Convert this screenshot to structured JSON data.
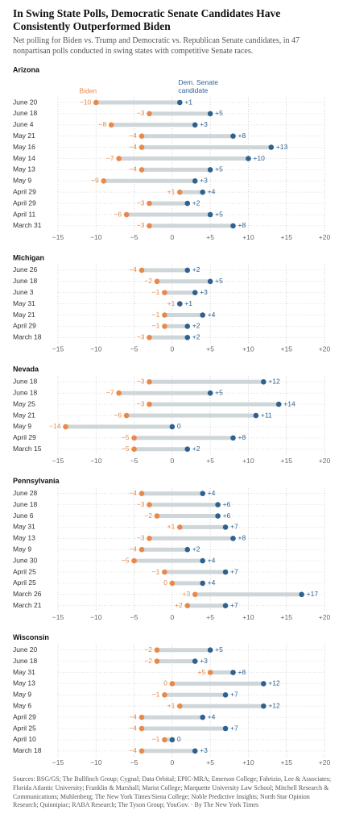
{
  "title": "In Swing State Polls, Democratic Senate Candidates Have Consistently Outperformed Biden",
  "subtitle": "Net polling for Biden vs. Trump and Democratic vs. Republican Senate candidates, in 47 nonpartisan polls conducted in swing states with competitive Senate races.",
  "source": "Sources: BSG/GS; The Bullfinch Group; Cygnal; Data Orbital; EPIC-MRA; Emerson College; Fabrizio, Lee & Associates; Florida Atlantic University; Franklin & Marshall; Marist College; Marquette University Law School; Mitchell Research & Communications; Muhlenberg; The New York Times/Siena College; Noble Predictive Insights; North Star Opinion Research; Quinnipiac; RABA Research; The Tyson Group; YouGov. · By The New York Times",
  "chart_data": [
    {
      "type": "dumbbell",
      "title": "Arizona",
      "categories": [
        "June 20",
        "June 18",
        "June 4",
        "May 21",
        "May 16",
        "May 14",
        "May 13",
        "May 9",
        "April 29",
        "April 29",
        "April 11",
        "March 31"
      ],
      "series": [
        {
          "name": "Biden",
          "color": "#e8894a",
          "values": [
            -10,
            -3,
            -8,
            -4,
            -4,
            -7,
            -4,
            -9,
            1,
            -3,
            -6,
            -3
          ],
          "value_labels": [
            "−10",
            "−3",
            "−8",
            "−4",
            "−4",
            "−7",
            "−4",
            "−9",
            "+1",
            "−3",
            "−6",
            "−3"
          ]
        },
        {
          "name": "Dem. Senate candidate",
          "color": "#2e6190",
          "values": [
            1,
            5,
            3,
            8,
            13,
            10,
            5,
            3,
            4,
            2,
            5,
            8
          ],
          "value_labels": [
            "+1",
            "+5",
            "+3",
            "+8",
            "+13",
            "+10",
            "+5",
            "+3",
            "+4",
            "+2",
            "+5",
            "+8"
          ]
        }
      ],
      "xlim": [
        -15,
        20
      ],
      "xticks": [
        {
          "value": -15,
          "label": "−15"
        },
        {
          "value": -10,
          "label": "−10"
        },
        {
          "value": -5,
          "label": "−5"
        },
        0,
        {
          "value": 5,
          "label": "+5"
        },
        {
          "value": 10,
          "label": "+10"
        },
        {
          "value": 15,
          "label": "+15"
        },
        {
          "value": 20,
          "label": "+20"
        }
      ],
      "grid": true
    },
    {
      "type": "dumbbell",
      "title": "Michigan",
      "categories": [
        "June 26",
        "June 18",
        "June 3",
        "May 31",
        "May 21",
        "April 29",
        "March 18"
      ],
      "series": [
        {
          "color": "#e8894a",
          "values": [
            -4,
            -2,
            -1,
            1,
            -1,
            -1,
            -3
          ],
          "value_labels": [
            "−4",
            "−2",
            "−1",
            "+1",
            "−1",
            "−1",
            "−3"
          ]
        },
        {
          "color": "#2e6190",
          "values": [
            2,
            5,
            3,
            1,
            4,
            2,
            2
          ],
          "value_labels": [
            "+2",
            "+5",
            "+3",
            "+1",
            "+4",
            "+2",
            "+2"
          ]
        }
      ],
      "xlim": [
        -15,
        20
      ],
      "xticks": [
        {
          "value": -15,
          "label": "−15"
        },
        {
          "value": -10,
          "label": "−10"
        },
        {
          "value": -5,
          "label": "−5"
        },
        0,
        {
          "value": 5,
          "label": "+5"
        },
        {
          "value": 10,
          "label": "+10"
        },
        {
          "value": 15,
          "label": "+15"
        },
        {
          "value": 20,
          "label": "+20"
        }
      ],
      "grid": true
    },
    {
      "type": "dumbbell",
      "title": "Nevada",
      "categories": [
        "June 18",
        "June 18",
        "May 25",
        "May 21",
        "May 9",
        "April 29",
        "March 15"
      ],
      "series": [
        {
          "color": "#e8894a",
          "values": [
            -3,
            -7,
            -3,
            -6,
            -14,
            -5,
            -5
          ],
          "value_labels": [
            "−3",
            "−7",
            "−3",
            "−6",
            "−14",
            "−5",
            "−5"
          ]
        },
        {
          "color": "#2e6190",
          "values": [
            12,
            5,
            14,
            11,
            0,
            8,
            2
          ],
          "value_labels": [
            "+12",
            "+5",
            "+14",
            "+11",
            "0",
            "+8",
            "+2"
          ]
        }
      ],
      "xlim": [
        -15,
        20
      ],
      "xticks": [
        {
          "value": -15,
          "label": "−15"
        },
        {
          "value": -10,
          "label": "−10"
        },
        {
          "value": -5,
          "label": "−5"
        },
        0,
        {
          "value": 5,
          "label": "+5"
        },
        {
          "value": 10,
          "label": "+10"
        },
        {
          "value": 15,
          "label": "+15"
        },
        {
          "value": 20,
          "label": "+20"
        }
      ],
      "grid": true
    },
    {
      "type": "dumbbell",
      "title": "Pennsylvania",
      "categories": [
        "June 28",
        "June 18",
        "June 6",
        "May 31",
        "May 13",
        "May 9",
        "June 30",
        "April 25",
        "April 25",
        "March 26",
        "March 21"
      ],
      "series": [
        {
          "color": "#e8894a",
          "values": [
            -4,
            -3,
            -2,
            1,
            -3,
            -4,
            -5,
            -1,
            0,
            3,
            2
          ],
          "value_labels": [
            "−4",
            "−3",
            "−2",
            "+1",
            "−3",
            "−4",
            "−5",
            "−1",
            "0",
            "+3",
            "+2"
          ]
        },
        {
          "color": "#2e6190",
          "values": [
            4,
            6,
            6,
            7,
            8,
            2,
            4,
            7,
            4,
            17,
            7
          ],
          "value_labels": [
            "+4",
            "+6",
            "+6",
            "+7",
            "+8",
            "+2",
            "+4",
            "+7",
            "+4",
            "+17",
            "+7"
          ]
        }
      ],
      "xlim": [
        -15,
        20
      ],
      "xticks": [
        {
          "value": -15,
          "label": "−15"
        },
        {
          "value": -10,
          "label": "−10"
        },
        {
          "value": -5,
          "label": "−5"
        },
        0,
        {
          "value": 5,
          "label": "+5"
        },
        {
          "value": 10,
          "label": "+10"
        },
        {
          "value": 15,
          "label": "+15"
        },
        {
          "value": 20,
          "label": "+20"
        }
      ],
      "grid": true
    },
    {
      "type": "dumbbell",
      "title": "Wisconsin",
      "categories": [
        "June 20",
        "June 18",
        "May 31",
        "May 13",
        "May 9",
        "May 6",
        "April 29",
        "April 25",
        "April 10",
        "March 18"
      ],
      "series": [
        {
          "color": "#e8894a",
          "values": [
            -2,
            -2,
            5,
            0,
            -1,
            1,
            -4,
            -4,
            -1,
            -4
          ],
          "value_labels": [
            "−2",
            "−2",
            "+5",
            "0",
            "−1",
            "+1",
            "−4",
            "−4",
            "−1",
            "−4"
          ]
        },
        {
          "color": "#2e6190",
          "values": [
            5,
            3,
            8,
            12,
            7,
            12,
            4,
            7,
            0,
            3
          ],
          "value_labels": [
            "+5",
            "+3",
            "+8",
            "+12",
            "+7",
            "+12",
            "+4",
            "+7",
            "0",
            "+3"
          ]
        }
      ],
      "xlim": [
        -15,
        20
      ],
      "xticks": [
        {
          "value": -15,
          "label": "−15"
        },
        {
          "value": -10,
          "label": "−10"
        },
        {
          "value": -5,
          "label": "−5"
        },
        0,
        {
          "value": 5,
          "label": "+5"
        },
        {
          "value": 10,
          "label": "+10"
        },
        {
          "value": 15,
          "label": "+15"
        },
        {
          "value": 20,
          "label": "+20"
        }
      ],
      "grid": true
    }
  ]
}
